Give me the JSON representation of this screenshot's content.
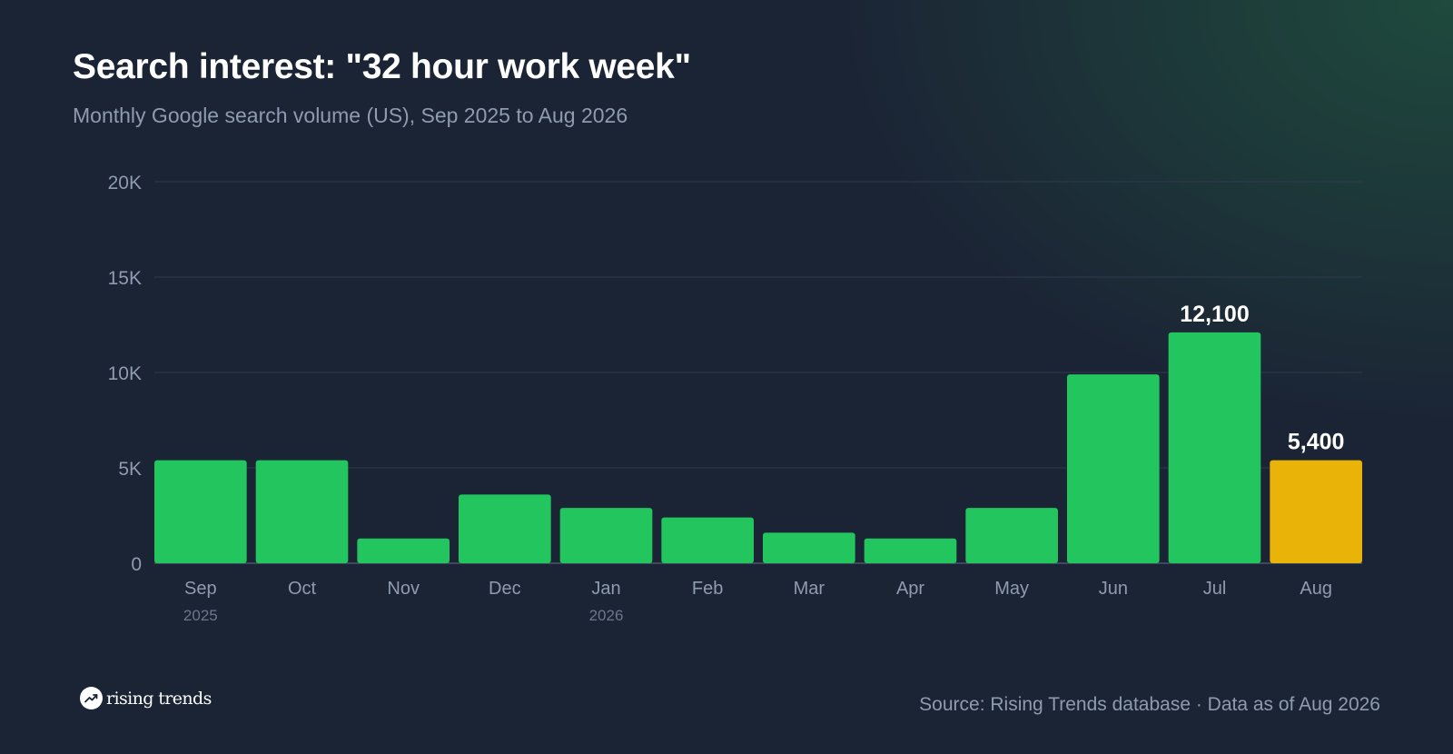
{
  "header": {
    "title": "Search interest: \"32 hour work week\"",
    "subtitle": "Monthly Google search volume (US), Sep 2025 to Aug 2026"
  },
  "chart_data": {
    "type": "bar",
    "categories": [
      "Sep",
      "Oct",
      "Nov",
      "Dec",
      "Jan",
      "Feb",
      "Mar",
      "Apr",
      "May",
      "Jun",
      "Jul",
      "Aug"
    ],
    "year_labels": [
      {
        "category": "Sep",
        "label": "2025"
      },
      {
        "category": "Jan",
        "label": "2026"
      }
    ],
    "values": [
      5400,
      5400,
      1300,
      3600,
      2900,
      2400,
      1600,
      1300,
      2900,
      9900,
      12100,
      5400
    ],
    "highlight": {
      "category": "Aug",
      "color": "#eab308"
    },
    "bar_color": "#22c55e",
    "data_labels": [
      {
        "category": "Jul",
        "label": "12,100"
      },
      {
        "category": "Aug",
        "label": "5,400"
      }
    ],
    "ylim": [
      0,
      20000
    ],
    "yticks": [
      0,
      5000,
      10000,
      15000,
      20000
    ],
    "ytick_labels": [
      "0",
      "5K",
      "10K",
      "15K",
      "20K"
    ],
    "grid": true,
    "xlabel": "",
    "ylabel": ""
  },
  "footer": {
    "logo_text": "rising trends",
    "logo_icon": "trend-up-icon",
    "source": "Source: Rising Trends database · Data as of Aug 2026"
  }
}
